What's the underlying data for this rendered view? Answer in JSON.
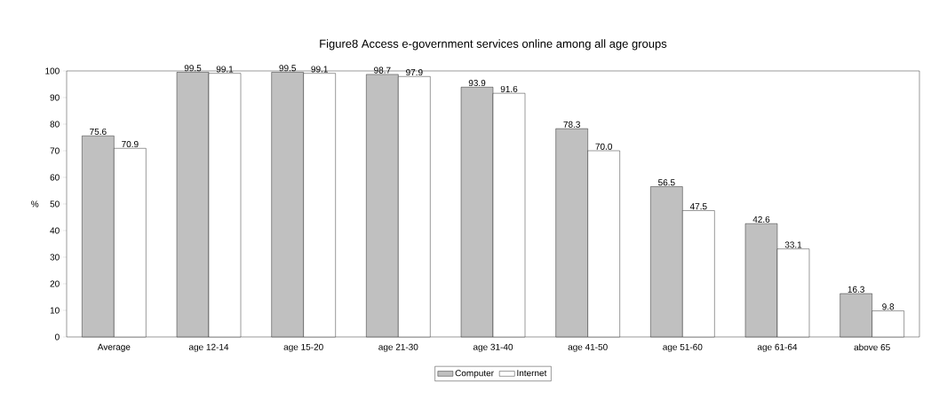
{
  "chart_data": {
    "type": "bar",
    "title": "Figure8 Access e-government services online among all age groups",
    "ylabel": "%",
    "categories": [
      "Average",
      "age 12-14",
      "age 15-20",
      "age 21-30",
      "age 31-40",
      "age 41-50",
      "age 51-60",
      "age 61-64",
      "above 65"
    ],
    "series": [
      {
        "name": "Computer",
        "color": "#c0c0c0",
        "values": [
          75.6,
          99.5,
          99.5,
          98.7,
          93.9,
          78.3,
          56.5,
          42.6,
          16.3
        ],
        "value_labels": [
          "75.6",
          "99.5",
          "99.5",
          "98.7",
          "93.9",
          "78.3",
          "56.5",
          "42.6",
          "16.3"
        ]
      },
      {
        "name": "Internet",
        "color": "#ffffff",
        "values": [
          70.9,
          99.1,
          99.1,
          97.9,
          91.6,
          70.0,
          47.5,
          33.1,
          9.8
        ],
        "value_labels": [
          "70.9",
          "99.1",
          "99.1",
          "97.9",
          "91.6",
          "70.0",
          "47.5",
          "33.1",
          "9.8"
        ]
      }
    ],
    "ylim": [
      0,
      100
    ],
    "yticks": [
      0,
      10,
      20,
      30,
      40,
      50,
      60,
      70,
      80,
      90,
      100
    ],
    "grid": false,
    "legend": "bottom"
  }
}
